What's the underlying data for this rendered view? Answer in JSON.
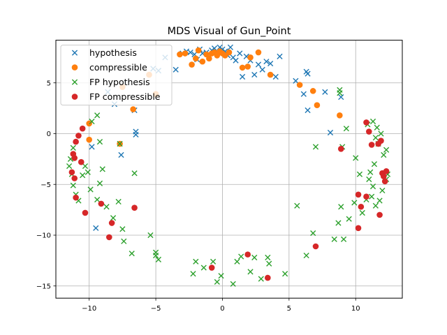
{
  "chart_data": {
    "type": "scatter",
    "title": "MDS Visual of Gun_Point",
    "xlabel": "",
    "ylabel": "",
    "xlim": [
      -12.5,
      13.5
    ],
    "ylim": [
      -16.2,
      9.2
    ],
    "xticks": [
      -10,
      -5,
      0,
      5,
      10
    ],
    "yticks": [
      -15,
      -10,
      -5,
      0,
      5
    ],
    "xtick_labels": [
      "−10",
      "−5",
      "0",
      "5",
      "10"
    ],
    "ytick_labels": [
      "−15",
      "−10",
      "−5",
      "0",
      "5"
    ],
    "grid": true,
    "legend_position": "top-left",
    "series": [
      {
        "name": "hypothesis",
        "marker": "x",
        "color": "#1f77b4",
        "points": [
          [
            -5.2,
            6.4
          ],
          [
            -4.8,
            6.2
          ],
          [
            -4.3,
            7.5
          ],
          [
            -3.5,
            6.3
          ],
          [
            -3.0,
            7.9
          ],
          [
            -2.7,
            8.1
          ],
          [
            -2.4,
            8.0
          ],
          [
            -2.1,
            7.8
          ],
          [
            -1.9,
            7.3
          ],
          [
            -1.7,
            8.3
          ],
          [
            -1.5,
            7.9
          ],
          [
            -1.2,
            8.0
          ],
          [
            -1.0,
            7.6
          ],
          [
            -0.8,
            8.2
          ],
          [
            -0.6,
            8.4
          ],
          [
            -0.4,
            7.9
          ],
          [
            -0.2,
            8.5
          ],
          [
            0.0,
            8.3
          ],
          [
            0.2,
            8.1
          ],
          [
            0.4,
            7.7
          ],
          [
            0.6,
            8.5
          ],
          [
            0.8,
            7.5
          ],
          [
            1.0,
            7.2
          ],
          [
            1.3,
            7.9
          ],
          [
            1.5,
            5.6
          ],
          [
            1.8,
            7.6
          ],
          [
            2.1,
            7.2
          ],
          [
            2.4,
            5.8
          ],
          [
            2.7,
            6.8
          ],
          [
            3.0,
            6.3
          ],
          [
            3.3,
            7.1
          ],
          [
            3.6,
            6.9
          ],
          [
            4.0,
            5.6
          ],
          [
            4.3,
            7.6
          ],
          [
            5.5,
            5.2
          ],
          [
            6.3,
            6.1
          ],
          [
            6.4,
            5.9
          ],
          [
            6.4,
            2.3
          ],
          [
            6.1,
            3.9
          ],
          [
            7.7,
            4.1
          ],
          [
            8.9,
            3.6
          ],
          [
            8.1,
            0.1
          ],
          [
            -6.5,
            0.2
          ],
          [
            -6.5,
            -0.1
          ],
          [
            -6.6,
            2.3
          ],
          [
            -7.6,
            -2.1
          ],
          [
            -8.6,
            4.1
          ],
          [
            -8.1,
            2.9
          ],
          [
            -9.8,
            -1.3
          ],
          [
            -9.5,
            -9.3
          ]
        ]
      },
      {
        "name": "compressible",
        "marker": "o",
        "color": "#ff7f0e",
        "points": [
          [
            -3.2,
            7.8
          ],
          [
            -2.8,
            7.9
          ],
          [
            -2.3,
            6.8
          ],
          [
            -2.0,
            7.4
          ],
          [
            -1.8,
            8.2
          ],
          [
            -1.5,
            7.1
          ],
          [
            -1.2,
            7.8
          ],
          [
            -1.0,
            7.4
          ],
          [
            -0.8,
            7.9
          ],
          [
            -0.6,
            8.0
          ],
          [
            -0.4,
            7.7
          ],
          [
            -0.2,
            8.1
          ],
          [
            0.0,
            7.9
          ],
          [
            0.2,
            7.7
          ],
          [
            0.5,
            8.0
          ],
          [
            1.5,
            6.5
          ],
          [
            1.9,
            6.6
          ],
          [
            2.1,
            7.5
          ],
          [
            2.7,
            8.0
          ],
          [
            3.6,
            5.8
          ],
          [
            5.8,
            4.8
          ],
          [
            6.8,
            4.2
          ],
          [
            7.1,
            2.8
          ],
          [
            8.8,
            1.8
          ],
          [
            -5.5,
            5.8
          ],
          [
            -5.0,
            3.9
          ],
          [
            -6.7,
            2.4
          ],
          [
            -7.5,
            4.6
          ],
          [
            -10.0,
            -0.6
          ],
          [
            -10.0,
            1.0
          ],
          [
            -7.7,
            -1.0
          ]
        ]
      },
      {
        "name": "FP hypothesis",
        "marker": "x",
        "color": "#2ca02c",
        "points": [
          [
            -9.8,
            1.2
          ],
          [
            -9.4,
            1.8
          ],
          [
            -9.2,
            -0.8
          ],
          [
            -11.2,
            -1.4
          ],
          [
            -11.4,
            -2.5
          ],
          [
            -11.5,
            -3.2
          ],
          [
            -11.3,
            -4.0
          ],
          [
            -11.2,
            -5.1
          ],
          [
            -11.0,
            -6.0
          ],
          [
            -10.8,
            -6.6
          ],
          [
            -10.5,
            -4.1
          ],
          [
            -10.3,
            -3.2
          ],
          [
            -10.1,
            -3.8
          ],
          [
            -9.9,
            -5.5
          ],
          [
            -9.4,
            -6.5
          ],
          [
            -9.2,
            -4.9
          ],
          [
            -9.0,
            -3.5
          ],
          [
            -8.7,
            -7.2
          ],
          [
            -8.2,
            -8.3
          ],
          [
            -7.8,
            -6.7
          ],
          [
            -7.5,
            -9.4
          ],
          [
            -7.4,
            -10.6
          ],
          [
            -6.8,
            -11.8
          ],
          [
            -6.6,
            -3.9
          ],
          [
            -5.4,
            -10.0
          ],
          [
            -5.0,
            -12.0
          ],
          [
            -4.8,
            -12.4
          ],
          [
            -5.0,
            -11.7
          ],
          [
            -2.2,
            -13.8
          ],
          [
            -2.0,
            -12.6
          ],
          [
            -1.4,
            -13.2
          ],
          [
            -0.7,
            -12.6
          ],
          [
            -0.4,
            -14.6
          ],
          [
            -0.1,
            -14.0
          ],
          [
            0.8,
            -14.8
          ],
          [
            1.1,
            -12.6
          ],
          [
            1.4,
            -12.1
          ],
          [
            2.1,
            -13.6
          ],
          [
            2.4,
            -12.2
          ],
          [
            2.9,
            -14.3
          ],
          [
            3.4,
            -12.2
          ],
          [
            3.5,
            -12.8
          ],
          [
            4.7,
            -13.8
          ],
          [
            5.6,
            -7.1
          ],
          [
            6.3,
            -12.0
          ],
          [
            6.8,
            -9.8
          ],
          [
            7.0,
            -1.3
          ],
          [
            8.4,
            -10.4
          ],
          [
            8.7,
            -8.8
          ],
          [
            8.9,
            -7.2
          ],
          [
            9.0,
            -1.3
          ],
          [
            9.1,
            -10.4
          ],
          [
            9.5,
            -8.4
          ],
          [
            9.9,
            -6.8
          ],
          [
            10.0,
            -2.4
          ],
          [
            10.3,
            -4.0
          ],
          [
            10.5,
            -7.8
          ],
          [
            10.8,
            -6.5
          ],
          [
            11.0,
            -4.5
          ],
          [
            11.2,
            -6.2
          ],
          [
            11.3,
            -5.2
          ],
          [
            11.5,
            -7.1
          ],
          [
            11.8,
            -6.6
          ],
          [
            12.0,
            -5.6
          ],
          [
            12.3,
            -4.5
          ],
          [
            12.4,
            -4.0
          ],
          [
            11.7,
            -1.0
          ],
          [
            11.5,
            -0.4
          ],
          [
            12.1,
            -2.1
          ],
          [
            12.3,
            -1.6
          ],
          [
            11.9,
            0.0
          ],
          [
            11.6,
            0.6
          ],
          [
            11.3,
            1.2
          ],
          [
            10.9,
            0.9
          ],
          [
            11.1,
            -3.8
          ],
          [
            11.4,
            -3.0
          ],
          [
            8.8,
            4.3
          ],
          [
            8.8,
            4.0
          ],
          [
            9.3,
            0.5
          ],
          [
            -7.7,
            -1.0
          ]
        ]
      },
      {
        "name": "FP compressible",
        "marker": "o",
        "color": "#d62728",
        "points": [
          [
            -10.5,
            0.5
          ],
          [
            -10.8,
            -0.2
          ],
          [
            -11.0,
            -0.8
          ],
          [
            -11.2,
            -2.0
          ],
          [
            -11.1,
            -2.4
          ],
          [
            -10.6,
            -2.8
          ],
          [
            -11.3,
            -3.8
          ],
          [
            -11.1,
            -4.4
          ],
          [
            -11.0,
            -6.3
          ],
          [
            -10.3,
            -7.8
          ],
          [
            -9.1,
            -6.9
          ],
          [
            -8.5,
            -10.2
          ],
          [
            -8.3,
            -8.8
          ],
          [
            -6.6,
            -7.3
          ],
          [
            -0.8,
            -13.2
          ],
          [
            1.9,
            -11.9
          ],
          [
            3.4,
            -14.2
          ],
          [
            7.0,
            -11.1
          ],
          [
            8.9,
            -1.5
          ],
          [
            10.2,
            -9.3
          ],
          [
            10.2,
            -6.0
          ],
          [
            10.4,
            -7.2
          ],
          [
            10.8,
            -6.2
          ],
          [
            10.8,
            1.1
          ],
          [
            11.0,
            0.2
          ],
          [
            11.2,
            -1.1
          ],
          [
            11.7,
            -1.0
          ],
          [
            11.9,
            -0.7
          ],
          [
            12.0,
            -3.9
          ],
          [
            12.1,
            -4.2
          ],
          [
            12.2,
            -4.7
          ],
          [
            11.8,
            -8.0
          ],
          [
            12.3,
            -3.7
          ]
        ]
      }
    ]
  }
}
